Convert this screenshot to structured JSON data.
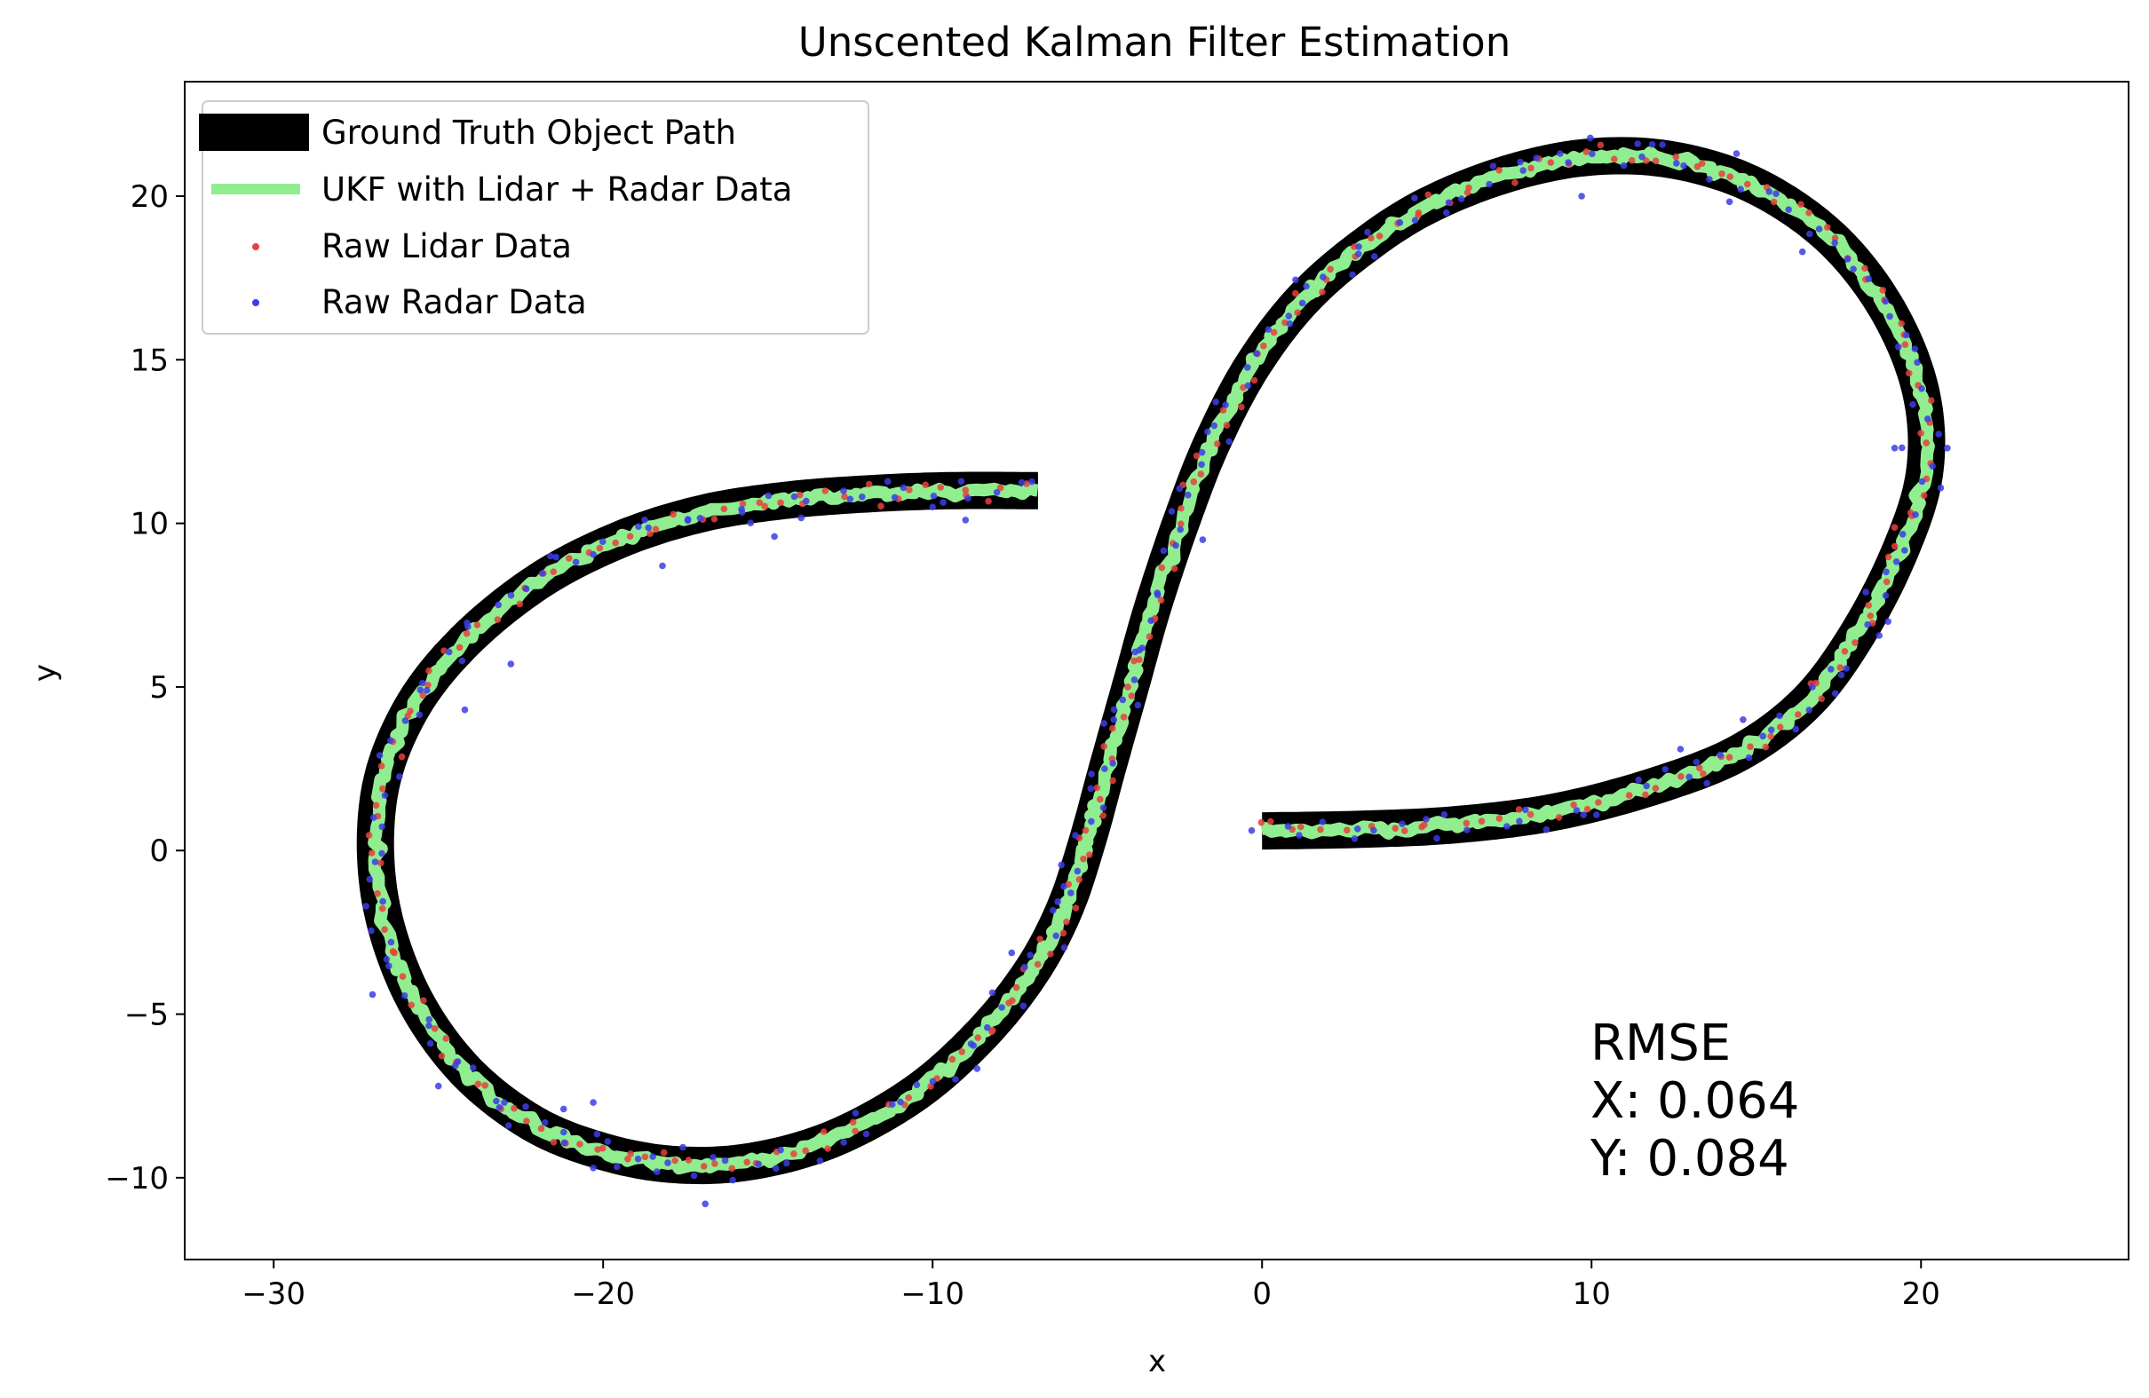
{
  "chart_data": {
    "type": "line",
    "title": "Unscented Kalman Filter Estimation",
    "xlabel": "x",
    "ylabel": "y",
    "xlim": [
      -32.7,
      26.3
    ],
    "ylim": [
      -12.5,
      23.5
    ],
    "xticks": [
      -30,
      -20,
      -10,
      0,
      10,
      20
    ],
    "xtick_labels": [
      "−30",
      "−20",
      "−10",
      "0",
      "10",
      "20"
    ],
    "yticks": [
      -10,
      -5,
      0,
      5,
      10,
      15,
      20
    ],
    "ytick_labels": [
      "−10",
      "−5",
      "0",
      "5",
      "10",
      "15",
      "20"
    ],
    "grid": false,
    "legend_position": "upper-left",
    "annotation": {
      "lines": [
        "RMSE",
        "X: 0.064",
        "Y: 0.084"
      ],
      "x": 10,
      "y": -6
    },
    "series": [
      {
        "name": "Ground Truth Object Path",
        "kind": "line",
        "color": "#000000",
        "points": [
          [
            0.0,
            0.6
          ],
          [
            3.0,
            0.65
          ],
          [
            6.0,
            0.8
          ],
          [
            9.0,
            1.2
          ],
          [
            12.0,
            2.0
          ],
          [
            14.5,
            3.0
          ],
          [
            16.5,
            4.5
          ],
          [
            18.0,
            6.5
          ],
          [
            19.3,
            9.0
          ],
          [
            20.1,
            11.5
          ],
          [
            20.0,
            14.0
          ],
          [
            19.0,
            16.5
          ],
          [
            17.3,
            18.7
          ],
          [
            15.0,
            20.3
          ],
          [
            12.5,
            21.1
          ],
          [
            10.0,
            21.2
          ],
          [
            7.5,
            20.7
          ],
          [
            5.0,
            19.7
          ],
          [
            3.0,
            18.4
          ],
          [
            1.2,
            16.8
          ],
          [
            -0.3,
            14.8
          ],
          [
            -1.5,
            12.5
          ],
          [
            -2.4,
            10.2
          ],
          [
            -3.3,
            7.5
          ],
          [
            -4.0,
            5.0
          ],
          [
            -4.7,
            2.5
          ],
          [
            -5.3,
            0.3
          ],
          [
            -6.0,
            -1.8
          ],
          [
            -7.0,
            -3.7
          ],
          [
            -8.5,
            -5.6
          ],
          [
            -10.5,
            -7.4
          ],
          [
            -13.0,
            -8.8
          ],
          [
            -15.5,
            -9.5
          ],
          [
            -17.8,
            -9.6
          ],
          [
            -20.0,
            -9.2
          ],
          [
            -22.2,
            -8.3
          ],
          [
            -24.3,
            -6.6
          ],
          [
            -25.9,
            -4.2
          ],
          [
            -26.8,
            -1.3
          ],
          [
            -26.8,
            1.7
          ],
          [
            -25.9,
            4.2
          ],
          [
            -24.3,
            6.3
          ],
          [
            -22.0,
            8.2
          ],
          [
            -19.5,
            9.5
          ],
          [
            -17.0,
            10.3
          ],
          [
            -14.5,
            10.7
          ],
          [
            -12.0,
            10.9
          ],
          [
            -9.5,
            11.0
          ],
          [
            -6.8,
            11.0
          ]
        ]
      },
      {
        "name": "UKF with Lidar + Radar Data",
        "kind": "line",
        "color": "#90ee90"
      },
      {
        "name": "Raw Lidar Data",
        "kind": "scatter",
        "color": "#e8403c",
        "noise": 0.3
      },
      {
        "name": "Raw Radar Data",
        "kind": "scatter",
        "color": "#3c3ce8",
        "noise": 0.55,
        "points": [
          [
            -27.0,
            -4.4
          ],
          [
            -27.2,
            -1.7
          ],
          [
            -25.0,
            -7.2
          ],
          [
            -23.0,
            -7.7
          ],
          [
            -21.2,
            -7.9
          ],
          [
            -20.3,
            -7.7
          ],
          [
            -16.9,
            -10.8
          ],
          [
            -20.3,
            -9.7
          ],
          [
            -24.2,
            4.3
          ],
          [
            -22.8,
            5.7
          ],
          [
            -21.6,
            9.0
          ],
          [
            -18.2,
            8.7
          ],
          [
            -14.8,
            9.6
          ],
          [
            -10.0,
            10.5
          ],
          [
            -9.0,
            10.1
          ],
          [
            -1.0,
            12.5
          ],
          [
            -1.8,
            9.5
          ],
          [
            3.2,
            18.9
          ],
          [
            9.7,
            20.0
          ],
          [
            11.4,
            21.6
          ],
          [
            14.4,
            21.3
          ],
          [
            16.4,
            18.3
          ],
          [
            19.2,
            12.3
          ],
          [
            20.8,
            12.3
          ],
          [
            17.4,
            4.8
          ],
          [
            12.7,
            3.1
          ],
          [
            14.6,
            4.0
          ],
          [
            19.0,
            7.0
          ],
          [
            -4.5,
            4.0
          ]
        ]
      }
    ]
  }
}
